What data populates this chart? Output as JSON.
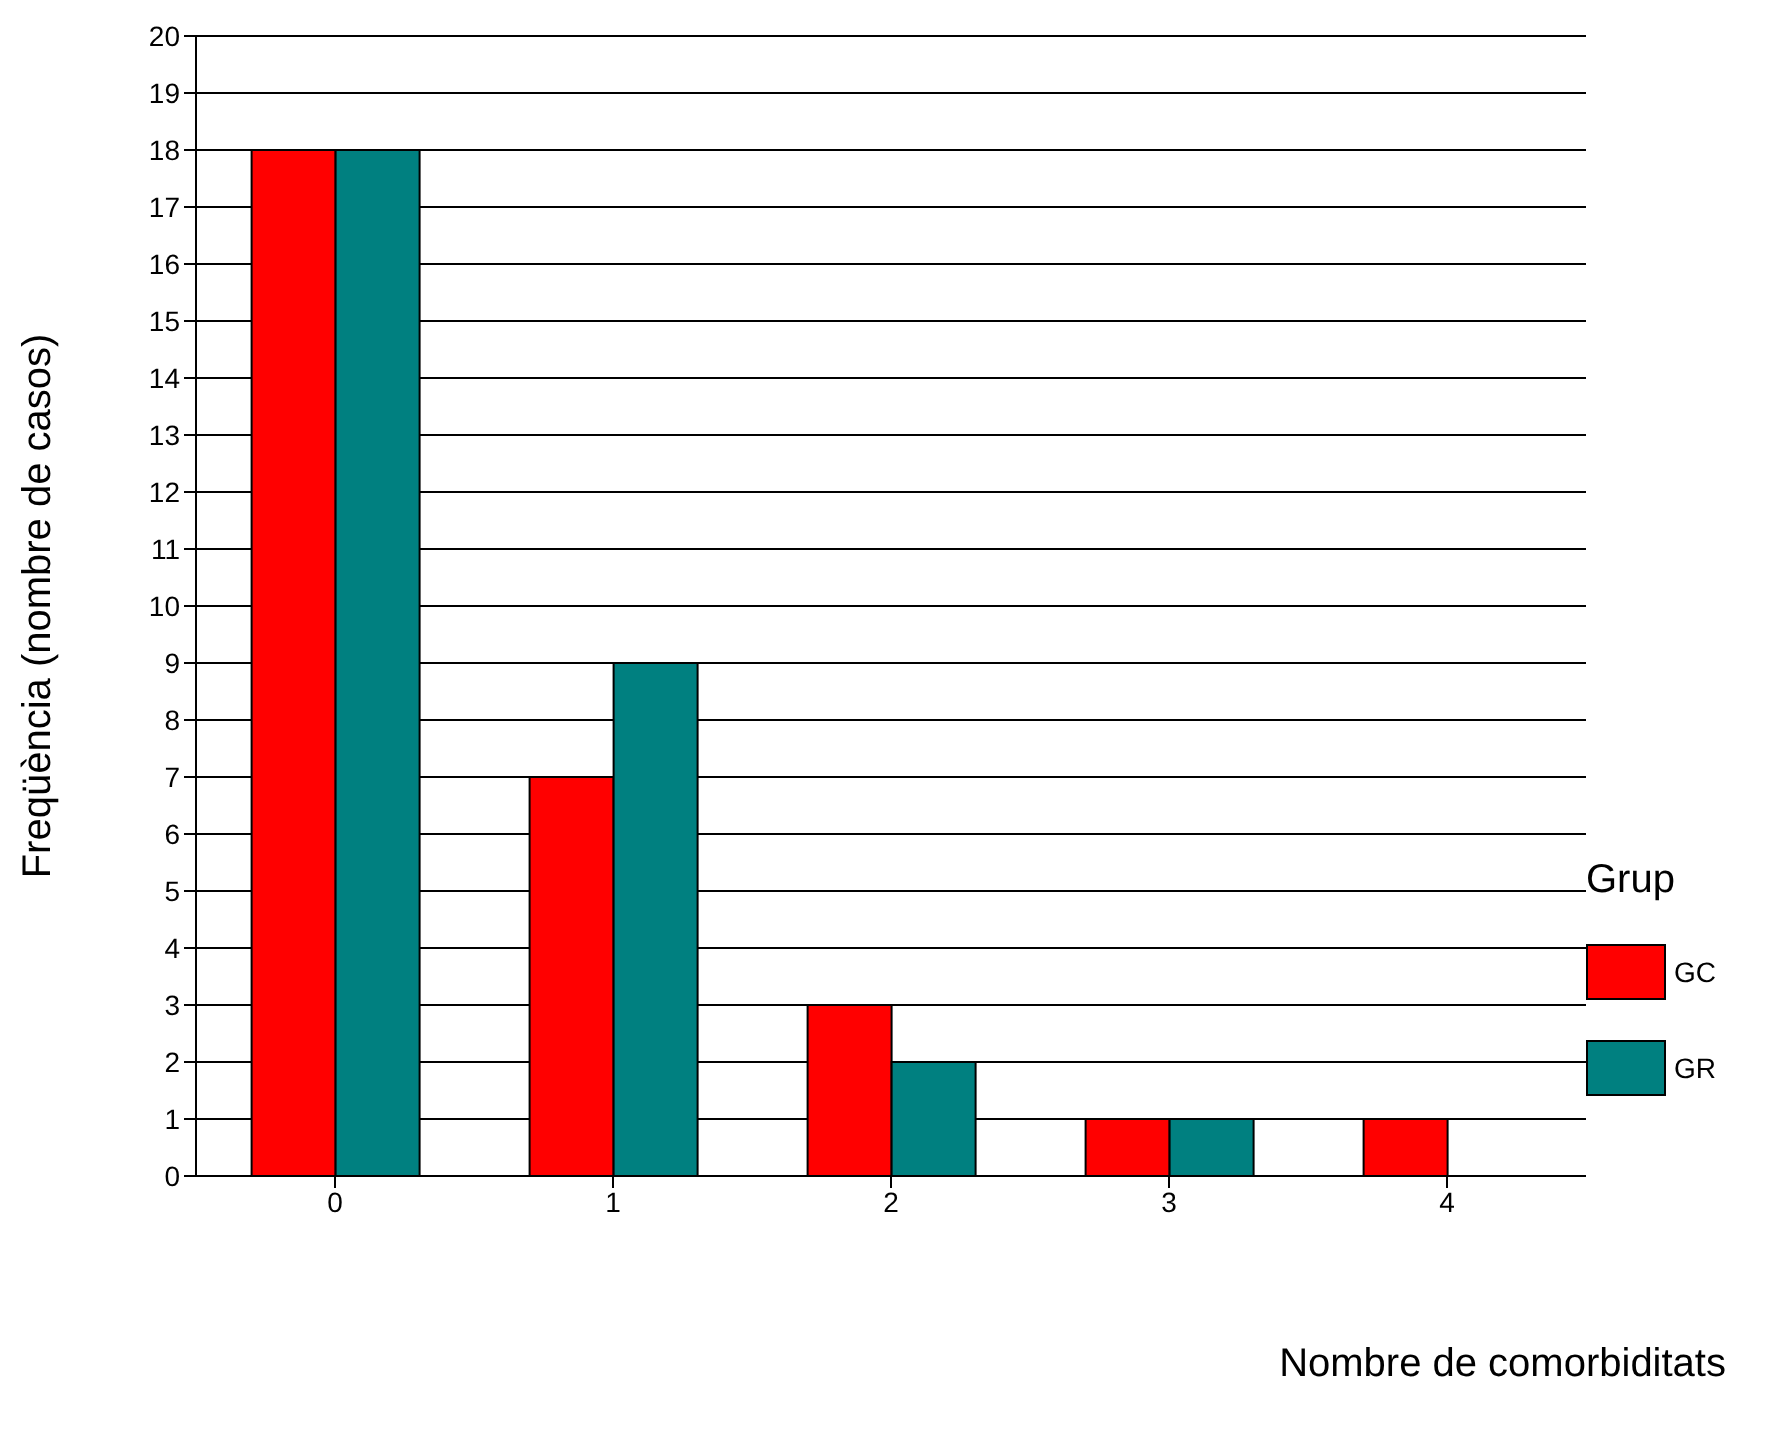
{
  "chart_data": {
    "type": "bar",
    "xlabel": "Nombre de comorbiditats",
    "ylabel": "Freqüència (nombre de casos)",
    "legend_title": "Grup",
    "categories": [
      "0",
      "1",
      "2",
      "3",
      "4"
    ],
    "series": [
      {
        "name": "GC",
        "color": "#ff0000",
        "values": [
          18,
          7,
          3,
          1,
          1
        ]
      },
      {
        "name": "GR",
        "color": "#008080",
        "values": [
          18,
          9,
          2,
          1,
          0
        ]
      }
    ],
    "ylim": [
      0,
      20
    ],
    "yticks": [
      0,
      1,
      2,
      3,
      4,
      5,
      6,
      7,
      8,
      9,
      10,
      11,
      12,
      13,
      14,
      15,
      16,
      17,
      18,
      19,
      20
    ],
    "grid": "y",
    "legend": "right"
  }
}
